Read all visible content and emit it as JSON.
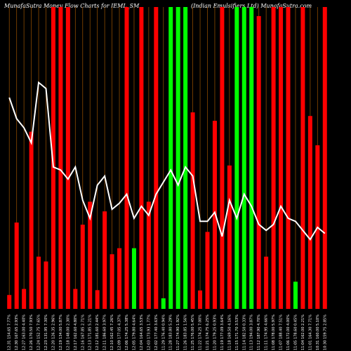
{
  "header": {
    "title_left": "MunafaSutra  Money Flow Charts for IEML_SM",
    "title_right": "(Indian Emulsifiers Ltd) MunafaSutra.com"
  },
  "colors": {
    "background": "#000000",
    "up": "#00ff00",
    "down": "#ff0000",
    "line": "#ffffff",
    "grid": "#8b4a00"
  },
  "chart_data": {
    "type": "bar",
    "categories": [
      "12:31 154.65 7.77%",
      "12:30 167.65 2.93%",
      "12:27 163.00 4.40%",
      "12:26 170.50 7.93%",
      "12:24 152.75 7.65%",
      "12:23 131.95 7.30%",
      "12:20 126.35 2.96%",
      "12:19 134.00 5.87%",
      "12:18 148.00 2.30%",
      "12:17 162.60 4.80%",
      "12:16 167.85 2.71%",
      "12:13 171.85 5.21%",
      "12:12 181.60 2.44%",
      "12:11 186.60 3.97%",
      "12:10 162.45 7.26%",
      "12:09 177.05 4.37%",
      "12:06 174.25 5.38%",
      "12:05 179.80 4.64%",
      "12:04 164.65 3.53%",
      "12:03 173.93 1.77%",
      "12:02 177.40 3.63%",
      "11:29 176.40 0.94%",
      "11:28 183.80 5.29%",
      "11:27 174.90 1.92%",
      "11:26 183.85 1.56%",
      "11:25 176.00 5.45%",
      "11:22 174.25 7.00%",
      "11:21 174.75 6.25%",
      "11:20 179.25 0.93%",
      "11:19 177.09 3.64%",
      "11:18 169.50 4.16%",
      "11:15 171.70 3.53%",
      "11:14 182.50 0.33%",
      "11:13 194.00 3.87%",
      "11:12 187.90 4.70%",
      "11:11 174.95 4.66%",
      "11:08 178.00 5.97%",
      "11:07 188.40 7.51%",
      "11:06 172.00 4.00%",
      "11:05 178.60 0.45%",
      "11:04 162.00 2.21%",
      "11:01 164.30 7.71%",
      "10:31 160.00 5.10%",
      "10:30 159.75 2.85%"
    ],
    "bar_heights_pct": [
      4.6,
      28.6,
      6.6,
      58.7,
      17.3,
      15.7,
      100,
      100,
      100,
      6.6,
      27.9,
      35.5,
      6.2,
      32.3,
      18.1,
      20.1,
      100,
      20.1,
      100,
      35.5,
      100,
      3.5,
      100,
      100,
      100,
      65.1,
      6.1,
      25.5,
      62.3,
      100,
      47.5,
      100,
      100,
      100,
      97.0,
      17.3,
      100,
      100,
      100,
      9.0,
      100,
      63.9,
      54.2,
      100
    ],
    "bar_colors": [
      "red",
      "red",
      "red",
      "red",
      "red",
      "red",
      "red",
      "red",
      "red",
      "red",
      "red",
      "red",
      "red",
      "red",
      "red",
      "red",
      "red",
      "green",
      "red",
      "red",
      "red",
      "green",
      "green",
      "green",
      "green",
      "red",
      "red",
      "red",
      "red",
      "red",
      "red",
      "green",
      "green",
      "green",
      "red",
      "red",
      "red",
      "red",
      "red",
      "green",
      "red",
      "red",
      "red",
      "red"
    ],
    "line": [
      70,
      63,
      60,
      55,
      75,
      73,
      47,
      46,
      43,
      47,
      36,
      30,
      41,
      44,
      33,
      35,
      38,
      30,
      34,
      31,
      38,
      42,
      46,
      41,
      47,
      44,
      29,
      29,
      32,
      24,
      36,
      30,
      38,
      34,
      28,
      26,
      28,
      34,
      30,
      29,
      26,
      23,
      27,
      25
    ],
    "ylim": [
      0,
      100
    ],
    "grid": true
  }
}
